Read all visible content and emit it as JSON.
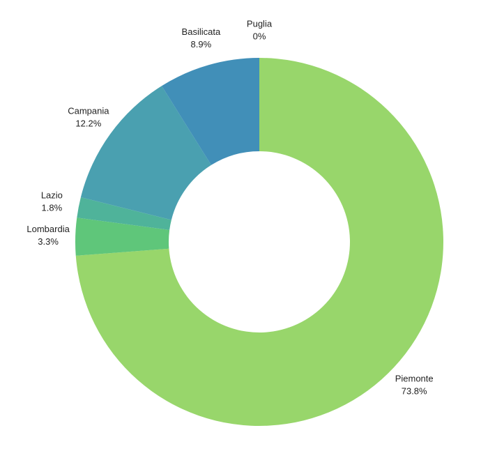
{
  "chart_data": {
    "type": "donut",
    "categories": [
      "Piemonte",
      "Lombardia",
      "Lazio",
      "Campania",
      "Basilicata",
      "Puglia"
    ],
    "values": [
      73.8,
      3.3,
      1.8,
      12.2,
      8.9,
      0
    ],
    "value_labels": [
      "73.8%",
      "3.3%",
      "1.8%",
      "12.2%",
      "8.9%",
      "0%"
    ],
    "colors": [
      "#98d66b",
      "#5fc67a",
      "#4fb39a",
      "#4aa0b0",
      "#418fb8",
      "#3f7fb8"
    ]
  }
}
